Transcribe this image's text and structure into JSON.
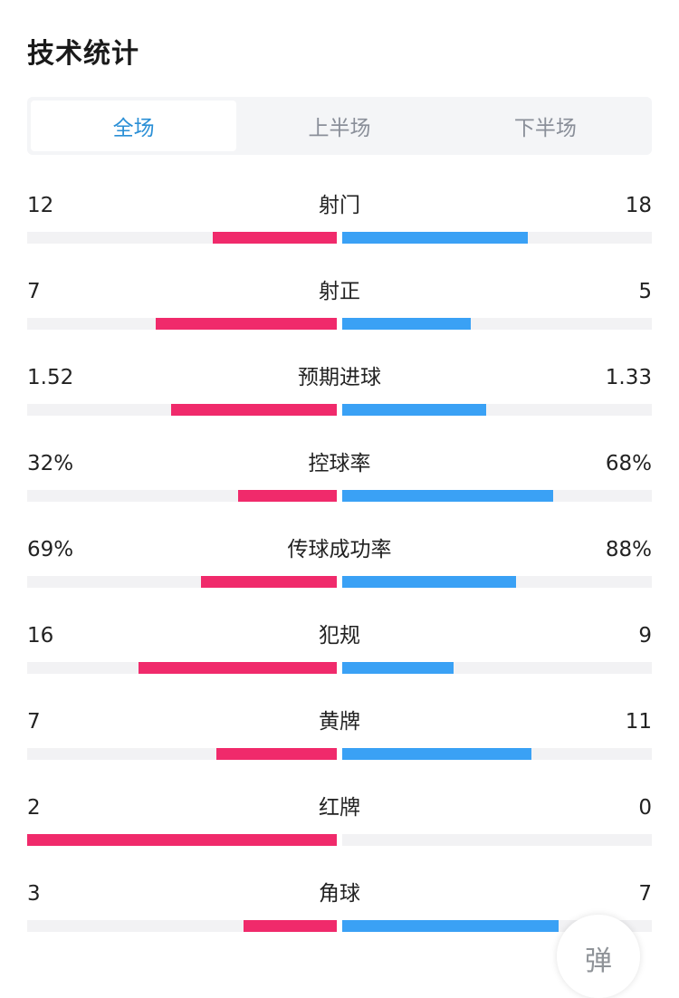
{
  "header": {
    "title": "技术统计"
  },
  "tabs": [
    {
      "label": "全场",
      "active": true
    },
    {
      "label": "上半场",
      "active": false
    },
    {
      "label": "下半场",
      "active": false
    }
  ],
  "colors": {
    "home": "#f02a6b",
    "away": "#3aa1f5",
    "track": "#f2f2f4",
    "active_tab": "#2a8fd6"
  },
  "stats": [
    {
      "label": "射门",
      "home": "12",
      "away": "18",
      "home_fill": 0.4,
      "away_fill": 0.6
    },
    {
      "label": "射正",
      "home": "7",
      "away": "5",
      "home_fill": 0.585,
      "away_fill": 0.415
    },
    {
      "label": "预期进球",
      "home": "1.52",
      "away": "1.33",
      "home_fill": 0.535,
      "away_fill": 0.465
    },
    {
      "label": "控球率",
      "home": "32%",
      "away": "68%",
      "home_fill": 0.32,
      "away_fill": 0.68
    },
    {
      "label": "传球成功率",
      "home": "69%",
      "away": "88%",
      "home_fill": 0.44,
      "away_fill": 0.56
    },
    {
      "label": "犯规",
      "home": "16",
      "away": "9",
      "home_fill": 0.64,
      "away_fill": 0.36
    },
    {
      "label": "黄牌",
      "home": "7",
      "away": "11",
      "home_fill": 0.39,
      "away_fill": 0.61
    },
    {
      "label": "红牌",
      "home": "2",
      "away": "0",
      "home_fill": 1.0,
      "away_fill": 0.0
    },
    {
      "label": "角球",
      "home": "3",
      "away": "7",
      "home_fill": 0.3,
      "away_fill": 0.7
    }
  ],
  "float_button": {
    "label": "弹"
  }
}
